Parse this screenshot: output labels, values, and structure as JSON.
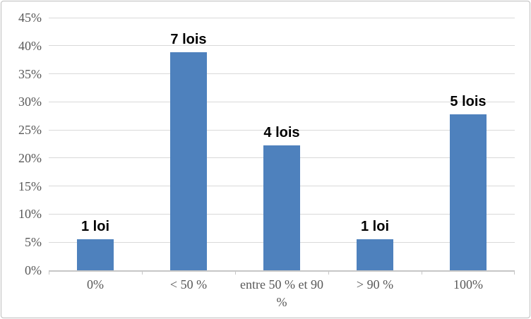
{
  "chart_data": {
    "type": "bar",
    "title": "",
    "xlabel": "",
    "ylabel": "",
    "categories": [
      "0%",
      "< 50 %",
      "entre 50 % et 90 %",
      "> 90 %",
      "100%"
    ],
    "values": [
      5.56,
      38.89,
      22.22,
      5.56,
      27.78
    ],
    "point_labels": [
      "1 loi",
      "7 lois",
      "4 lois",
      "1 loi",
      "5 lois"
    ],
    "ylim": [
      0,
      45
    ],
    "yticks": [
      {
        "value": 0,
        "label": "0%"
      },
      {
        "value": 5,
        "label": "5%"
      },
      {
        "value": 10,
        "label": "10%"
      },
      {
        "value": 15,
        "label": "15%"
      },
      {
        "value": 20,
        "label": "20%"
      },
      {
        "value": 25,
        "label": "25%"
      },
      {
        "value": 30,
        "label": "30%"
      },
      {
        "value": 35,
        "label": "35%"
      },
      {
        "value": 40,
        "label": "40%"
      },
      {
        "value": 45,
        "label": "45%"
      }
    ],
    "grid": true,
    "legend": false,
    "colors": {
      "bar": "#4e81bd",
      "gridline": "#d9d9d9",
      "axis_line": "#c6c6c6",
      "tick_text": "#595959",
      "value_label_text": "#000000",
      "border": "#bdbdbd",
      "background": "#ffffff"
    }
  }
}
